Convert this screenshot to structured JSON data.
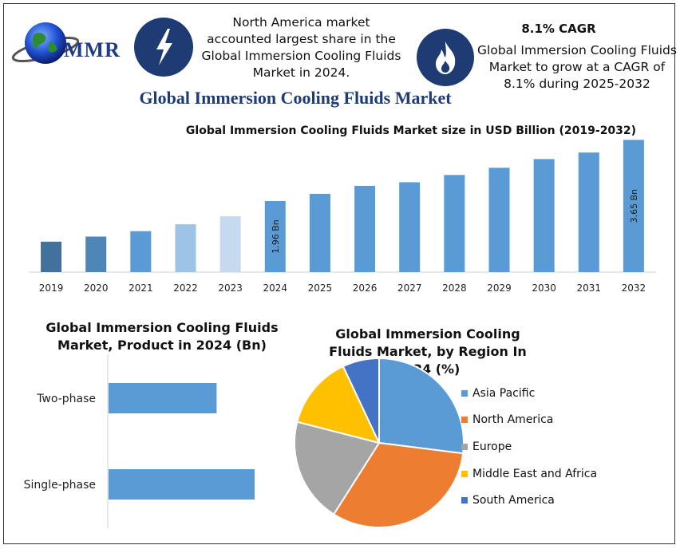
{
  "header": {
    "logo_text": "MMR",
    "region_note": "North America market accounted largest share in the Global Immersion Cooling Fluids Market in 2024.",
    "cagr_title": "8.1% CAGR",
    "cagr_note": "Global Immersion Cooling Fluids Market to grow at a CAGR of 8.1% during 2025-2032",
    "icons": [
      "globe-icon",
      "lightning-icon",
      "flame-icon"
    ]
  },
  "main_title": "Global Immersion Cooling Fluids Market",
  "chart_data": [
    {
      "type": "bar",
      "title": "Global Immersion Cooling Fluids Market size in USD Billion (2019-2032)",
      "categories": [
        "2019",
        "2020",
        "2021",
        "2022",
        "2023",
        "2024",
        "2025",
        "2026",
        "2027",
        "2028",
        "2029",
        "2030",
        "2031",
        "2032"
      ],
      "values": [
        0.84,
        0.98,
        1.13,
        1.32,
        1.54,
        1.96,
        2.16,
        2.38,
        2.48,
        2.68,
        2.88,
        3.12,
        3.3,
        3.65
      ],
      "colors": [
        "#41719c",
        "#4f86b8",
        "#5b9bd5",
        "#9dc3e6",
        "#c5d9ef",
        "#5b9bd5",
        "#5b9bd5",
        "#5b9bd5",
        "#5b9bd5",
        "#5b9bd5",
        "#5b9bd5",
        "#5b9bd5",
        "#5b9bd5",
        "#5b9bd5"
      ],
      "data_labels": [
        {
          "index": 5,
          "text": "1.96 Bn"
        },
        {
          "index": 13,
          "text": "3.65 Bn"
        }
      ],
      "ylim": [
        0,
        3.7
      ],
      "grid": false
    },
    {
      "type": "bar",
      "orientation": "horizontal",
      "title": "Global Immersion Cooling Fluids Market, Product in 2024 (Bn)",
      "categories": [
        "Two-phase",
        "Single-phase"
      ],
      "values": [
        0.74,
        1.0
      ],
      "color": "#5b9bd5"
    },
    {
      "type": "pie",
      "title": "Global Immersion Cooling Fluids Market, by Region In 2024 (%)",
      "labels": [
        "Asia Pacific",
        "North America",
        "Europe",
        "Middle East and Africa",
        "South America"
      ],
      "values": [
        27,
        32,
        20,
        14,
        7
      ],
      "colors": [
        "#5b9bd5",
        "#ed7d31",
        "#a5a5a5",
        "#ffc000",
        "#4472c4"
      ],
      "legend": "right"
    }
  ]
}
